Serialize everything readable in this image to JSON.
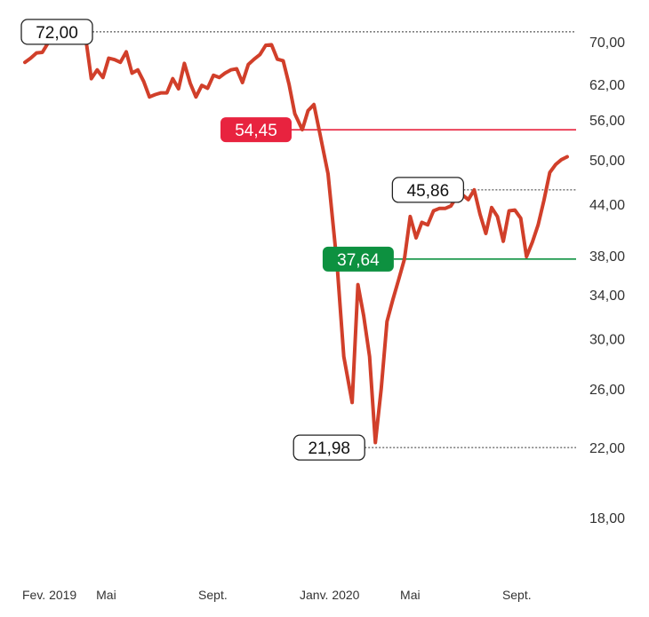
{
  "chart_data": {
    "type": "line",
    "title": "",
    "xlabel": "",
    "ylabel": "",
    "y_scale": "log",
    "ylim": [
      16.5,
      75
    ],
    "xlim": [
      "2019-02-01",
      "2020-12-31"
    ],
    "grid": false,
    "legend": "none",
    "y_ticks": [
      {
        "value": 70,
        "label": "70,00"
      },
      {
        "value": 62,
        "label": "62,00"
      },
      {
        "value": 56,
        "label": "56,00"
      },
      {
        "value": 50,
        "label": "50,00"
      },
      {
        "value": 44,
        "label": "44,00"
      },
      {
        "value": 38,
        "label": "38,00"
      },
      {
        "value": 34,
        "label": "34,00"
      },
      {
        "value": 30,
        "label": "30,00"
      },
      {
        "value": 26,
        "label": "26,00"
      },
      {
        "value": 22,
        "label": "22,00"
      },
      {
        "value": 18,
        "label": "18,00"
      }
    ],
    "x_ticks": [
      {
        "date": "2019-02-01",
        "label": "Fev. 2019"
      },
      {
        "date": "2019-05-01",
        "label": "Mai"
      },
      {
        "date": "2019-09-01",
        "label": "Sept."
      },
      {
        "date": "2020-01-01",
        "label": "Janv. 2020"
      },
      {
        "date": "2020-05-01",
        "label": "Mai"
      },
      {
        "date": "2020-09-01",
        "label": "Sept."
      }
    ],
    "series": [
      {
        "color": "#d13f2a",
        "points": [
          [
            "2019-02-01",
            66.0
          ],
          [
            "2019-02-08",
            66.8
          ],
          [
            "2019-02-15",
            67.8
          ],
          [
            "2019-02-22",
            67.9
          ],
          [
            "2019-03-01",
            69.8
          ],
          [
            "2019-03-08",
            72.0
          ],
          [
            "2019-03-15",
            72.3
          ],
          [
            "2019-03-22",
            72.5
          ],
          [
            "2019-04-01",
            72.5
          ],
          [
            "2019-04-08",
            71.8
          ],
          [
            "2019-04-15",
            71.0
          ],
          [
            "2019-04-22",
            63.0
          ],
          [
            "2019-04-29",
            64.6
          ],
          [
            "2019-05-06",
            63.2
          ],
          [
            "2019-05-13",
            66.8
          ],
          [
            "2019-05-20",
            66.5
          ],
          [
            "2019-05-27",
            66.0
          ],
          [
            "2019-06-03",
            68.0
          ],
          [
            "2019-06-10",
            64.0
          ],
          [
            "2019-06-17",
            64.6
          ],
          [
            "2019-06-24",
            62.5
          ],
          [
            "2019-07-01",
            59.8
          ],
          [
            "2019-07-08",
            60.2
          ],
          [
            "2019-07-15",
            60.5
          ],
          [
            "2019-07-22",
            60.5
          ],
          [
            "2019-07-29",
            63.0
          ],
          [
            "2019-08-05",
            61.2
          ],
          [
            "2019-08-12",
            65.8
          ],
          [
            "2019-08-19",
            62.2
          ],
          [
            "2019-08-26",
            59.8
          ],
          [
            "2019-09-02",
            61.8
          ],
          [
            "2019-09-09",
            61.3
          ],
          [
            "2019-09-16",
            63.6
          ],
          [
            "2019-09-23",
            63.2
          ],
          [
            "2019-09-30",
            64.0
          ],
          [
            "2019-10-07",
            64.6
          ],
          [
            "2019-10-14",
            64.8
          ],
          [
            "2019-10-21",
            62.3
          ],
          [
            "2019-10-28",
            65.6
          ],
          [
            "2019-11-04",
            66.6
          ],
          [
            "2019-11-11",
            67.5
          ],
          [
            "2019-11-18",
            69.3
          ],
          [
            "2019-11-25",
            69.4
          ],
          [
            "2019-12-02",
            66.6
          ],
          [
            "2019-12-09",
            66.3
          ],
          [
            "2019-12-16",
            62.0
          ],
          [
            "2019-12-23",
            57.0
          ],
          [
            "2020-01-01",
            54.45
          ],
          [
            "2020-01-08",
            57.5
          ],
          [
            "2020-01-15",
            58.5
          ],
          [
            "2020-01-22",
            54.0
          ],
          [
            "2020-02-01",
            48.0
          ],
          [
            "2020-02-12",
            37.0
          ],
          [
            "2020-02-20",
            28.5
          ],
          [
            "2020-03-01",
            25.0
          ],
          [
            "2020-03-08",
            35.0
          ],
          [
            "2020-03-15",
            32.0
          ],
          [
            "2020-03-22",
            28.5
          ],
          [
            "2020-03-29",
            22.3
          ],
          [
            "2020-04-05",
            26.0
          ],
          [
            "2020-04-12",
            31.5
          ],
          [
            "2020-04-19",
            33.5
          ],
          [
            "2020-04-26",
            35.5
          ],
          [
            "2020-05-03",
            37.64
          ],
          [
            "2020-05-10",
            42.5
          ],
          [
            "2020-05-17",
            40.0
          ],
          [
            "2020-05-24",
            41.8
          ],
          [
            "2020-05-31",
            41.5
          ],
          [
            "2020-06-07",
            43.2
          ],
          [
            "2020-06-14",
            43.5
          ],
          [
            "2020-06-21",
            43.5
          ],
          [
            "2020-06-28",
            43.8
          ],
          [
            "2020-07-05",
            45.0
          ],
          [
            "2020-07-12",
            45.2
          ],
          [
            "2020-07-19",
            44.6
          ],
          [
            "2020-07-26",
            45.86
          ],
          [
            "2020-08-02",
            42.8
          ],
          [
            "2020-08-09",
            40.5
          ],
          [
            "2020-08-16",
            43.6
          ],
          [
            "2020-08-23",
            42.5
          ],
          [
            "2020-08-30",
            39.6
          ],
          [
            "2020-09-06",
            43.2
          ],
          [
            "2020-09-13",
            43.3
          ],
          [
            "2020-09-20",
            42.3
          ],
          [
            "2020-09-27",
            37.9
          ],
          [
            "2020-10-04",
            39.5
          ],
          [
            "2020-10-11",
            41.5
          ],
          [
            "2020-10-18",
            44.5
          ],
          [
            "2020-10-25",
            48.2
          ],
          [
            "2020-11-01",
            49.3
          ],
          [
            "2020-11-08",
            50.0
          ],
          [
            "2020-11-15",
            50.4
          ]
        ]
      }
    ],
    "annotations": [
      {
        "label": "72,00",
        "value": 72.0,
        "date": "2019-03-15",
        "style": "outline",
        "line": "dotted",
        "line_color": "#333333"
      },
      {
        "label": "54,45",
        "value": 54.45,
        "date": "2020-01-01",
        "style": "filled",
        "fill": "#e8233f",
        "line": "solid",
        "line_color": "#e8233f"
      },
      {
        "label": "45,86",
        "value": 45.86,
        "date": "2020-07-26",
        "style": "outline",
        "line": "dotted",
        "line_color": "#333333"
      },
      {
        "label": "37,64",
        "value": 37.64,
        "date": "2020-05-03",
        "style": "filled",
        "fill": "#0d9140",
        "line": "solid",
        "line_color": "#0d9140"
      },
      {
        "label": "21,98",
        "value": 21.98,
        "date": "2020-03-29",
        "style": "outline",
        "line": "dotted",
        "line_color": "#333333"
      }
    ]
  }
}
